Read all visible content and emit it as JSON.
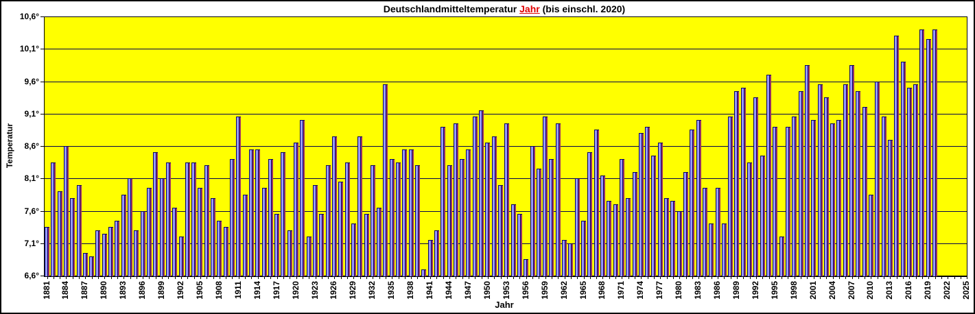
{
  "title": {
    "prefix": "Deutschlandmitteltemperatur ",
    "highlight": "Jahr",
    "suffix": " (bis einschl. 2020)"
  },
  "y_axis": {
    "label": "Temperatur",
    "tick_labels": [
      "10,6°",
      "10,1°",
      "9,6°",
      "9,1°",
      "8,6°",
      "8,1°",
      "7,6°",
      "7,1°",
      "6,6°"
    ],
    "min": 6.6,
    "max": 10.6,
    "step": 0.5
  },
  "x_axis": {
    "label": "Jahr",
    "first_year": 1881,
    "last_year": 2025,
    "label_step": 3,
    "tick_labels": [
      "1881",
      "1884",
      "1887",
      "1890",
      "1893",
      "1896",
      "1899",
      "1902",
      "1905",
      "1908",
      "1911",
      "1914",
      "1917",
      "1920",
      "1923",
      "1926",
      "1929",
      "1932",
      "1935",
      "1938",
      "1941",
      "1944",
      "1947",
      "1950",
      "1953",
      "1956",
      "1959",
      "1962",
      "1965",
      "1968",
      "1971",
      "1974",
      "1977",
      "1980",
      "1983",
      "1986",
      "1989",
      "1992",
      "1995",
      "1998",
      "2001",
      "2004",
      "2007",
      "2010",
      "2013",
      "2016",
      "2019",
      "2022",
      "2025"
    ]
  },
  "colors": {
    "plot_bg": "#ffff00",
    "bar_fill": "#9999ff",
    "bar_edge": "#000066",
    "bar_shadow": "#993366",
    "gridline": "#000050",
    "axis": "#000000",
    "title_highlight": "#e00000"
  },
  "chart_data": {
    "type": "bar",
    "title": "Deutschlandmitteltemperatur Jahr (bis einschl. 2020)",
    "xlabel": "Jahr",
    "ylabel": "Temperatur",
    "unit": "°C",
    "ylim": [
      6.6,
      10.6
    ],
    "xlim": [
      1881,
      2025
    ],
    "gridline_step": 0.5,
    "grid": true,
    "legend": false,
    "start_year": 1881,
    "end_year": 2020,
    "values": [
      7.35,
      8.35,
      7.9,
      8.6,
      7.8,
      8.0,
      6.95,
      6.9,
      7.3,
      7.25,
      7.35,
      7.45,
      7.85,
      8.1,
      7.3,
      7.6,
      7.95,
      8.5,
      8.1,
      8.35,
      7.65,
      7.2,
      8.35,
      8.35,
      7.95,
      8.3,
      7.8,
      7.45,
      7.35,
      8.4,
      9.05,
      7.85,
      8.55,
      8.55,
      7.95,
      8.4,
      7.55,
      8.5,
      7.3,
      8.65,
      9.0,
      7.2,
      8.0,
      7.55,
      8.3,
      8.75,
      8.05,
      8.35,
      7.4,
      8.75,
      7.55,
      8.3,
      7.65,
      9.55,
      8.4,
      8.35,
      8.55,
      8.55,
      8.3,
      6.7,
      7.15,
      7.3,
      8.9,
      8.3,
      8.95,
      8.4,
      8.55,
      9.05,
      9.15,
      8.65,
      8.75,
      8.0,
      8.95,
      7.7,
      7.55,
      6.85,
      8.6,
      8.25,
      9.05,
      8.4,
      8.95,
      7.15,
      7.1,
      8.1,
      7.45,
      8.5,
      8.85,
      8.15,
      7.75,
      7.7,
      8.4,
      7.8,
      8.2,
      8.8,
      8.9,
      8.45,
      8.65,
      7.8,
      7.75,
      7.6,
      8.2,
      8.85,
      9.0,
      7.95,
      7.4,
      7.95,
      7.4,
      9.05,
      9.45,
      9.5,
      8.35,
      9.35,
      8.45,
      9.7,
      8.9,
      7.2,
      8.9,
      9.05,
      9.45,
      9.85,
      9.0,
      9.55,
      9.35,
      8.95,
      9.0,
      9.55,
      9.85,
      9.45,
      9.2,
      7.85,
      9.6,
      9.05,
      8.7,
      10.3,
      9.9,
      9.5,
      9.55,
      10.4,
      10.25,
      10.4
    ]
  }
}
